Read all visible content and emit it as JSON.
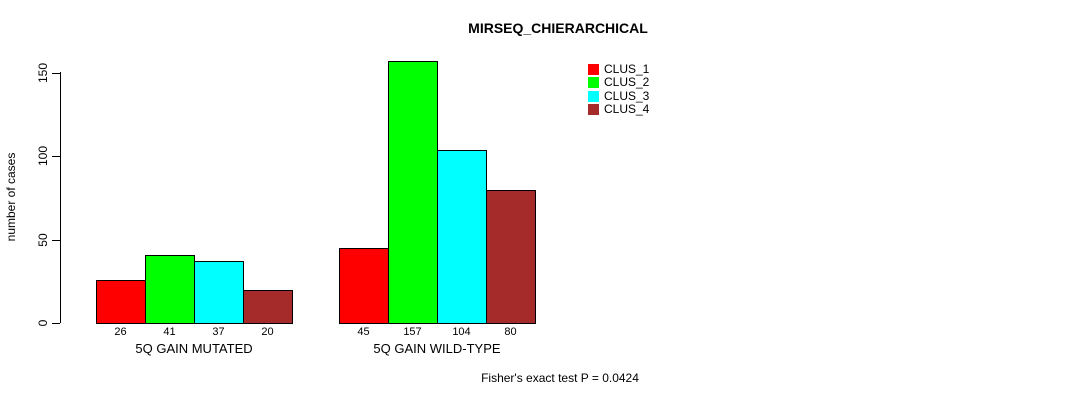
{
  "chart_data": {
    "type": "bar",
    "title": "MIRSEQ_CHIERARCHICAL",
    "xlabel": "",
    "ylabel": "number of cases",
    "categories": [
      "5Q GAIN MUTATED",
      "5Q GAIN WILD-TYPE"
    ],
    "series": [
      {
        "name": "CLUS_1",
        "color": "#ff0000",
        "values": [
          26,
          45
        ]
      },
      {
        "name": "CLUS_2",
        "color": "#00ff00",
        "values": [
          41,
          157
        ]
      },
      {
        "name": "CLUS_3",
        "color": "#00ffff",
        "values": [
          37,
          104
        ]
      },
      {
        "name": "CLUS_4",
        "color": "#a52a2a",
        "values": [
          20,
          80
        ]
      }
    ],
    "bar_value_labels": [
      [
        26,
        41,
        37,
        20
      ],
      [
        45,
        157,
        104,
        80
      ]
    ],
    "yticks": [
      0,
      50,
      100,
      150
    ],
    "ylim": [
      0,
      160
    ],
    "grid": false,
    "legend_position": "top-right",
    "legend_entries": [
      "CLUS_1",
      "CLUS_2",
      "CLUS_3",
      "CLUS_4"
    ],
    "annotation": "Fisher's exact test P = 0.0424",
    "background": "#ffffff",
    "bar_border_color": "#000000"
  }
}
